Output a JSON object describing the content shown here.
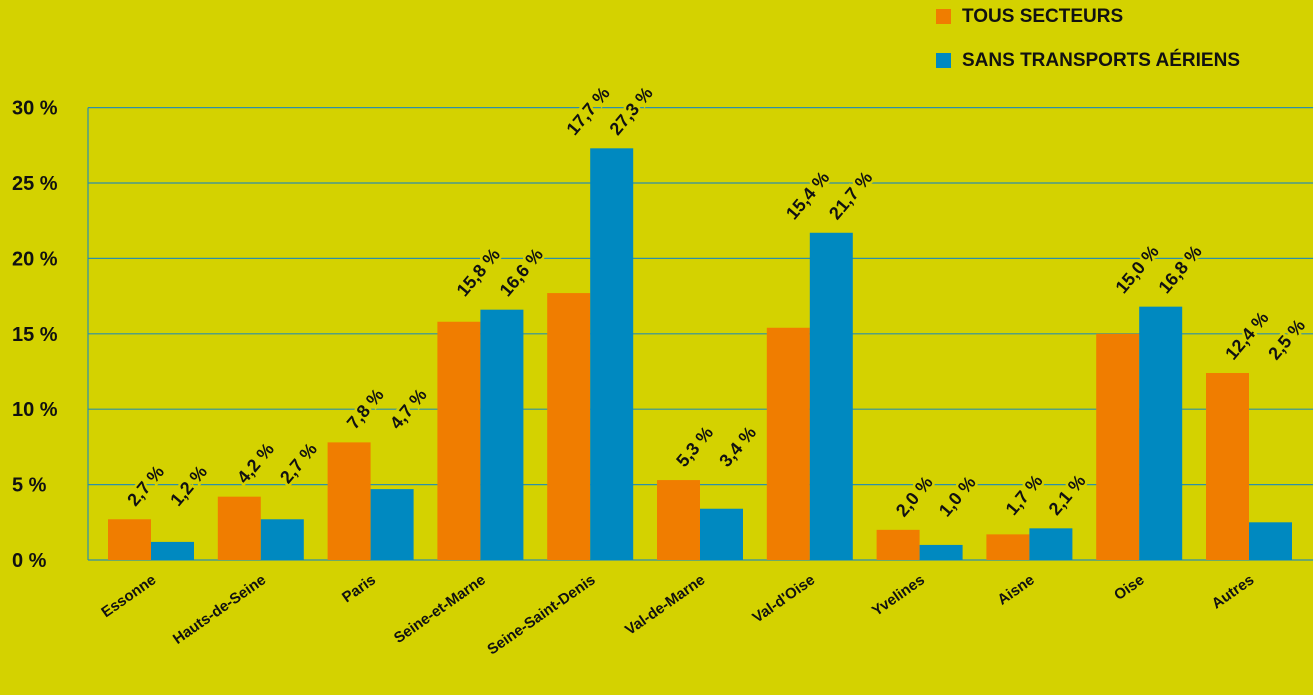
{
  "colors": {
    "background": "#d4d200",
    "gridline": "#2d8fa8",
    "label_bg": "#d4d200",
    "text": "#111111"
  },
  "chart_data": {
    "type": "bar",
    "title": "",
    "xlabel": "",
    "ylabel": "",
    "ylim": [
      0,
      30
    ],
    "yticks": [
      0,
      5,
      10,
      15,
      20,
      25,
      30
    ],
    "ytick_labels": [
      "0 %",
      "5 %",
      "10 %",
      "15 %",
      "20 %",
      "25 %",
      "30 %"
    ],
    "grid": true,
    "legend_position": "top-right",
    "categories": [
      "Essonne",
      "Hauts-de-Seine",
      "Paris",
      "Seine-et-Marne",
      "Seine-Saint-Denis",
      "Val-de-Marne",
      "Val-d'Oise",
      "Yvelines",
      "Aisne",
      "Oise",
      "Autres"
    ],
    "series": [
      {
        "name": "TOUS SECTEURS",
        "color": "#f07d00",
        "values": [
          2.7,
          4.2,
          7.8,
          15.8,
          17.7,
          5.3,
          15.4,
          2.0,
          1.7,
          15.0,
          12.4
        ],
        "labels": [
          "2,7 %",
          "4,2 %",
          "7,8 %",
          "15,8 %",
          "17,7 %",
          "5,3 %",
          "15,4 %",
          "2,0 %",
          "1,7 %",
          "15,0 %",
          "12,4 %"
        ]
      },
      {
        "name": "SANS TRANSPORTS AÉRIENS",
        "color": "#0089c0",
        "values": [
          1.2,
          2.7,
          4.7,
          16.6,
          27.3,
          3.4,
          21.7,
          1.0,
          2.1,
          16.8,
          2.5
        ],
        "labels": [
          "1,2 %",
          "2,7 %",
          "4,7 %",
          "16,6 %",
          "27,3 %",
          "3,4 %",
          "21,7 %",
          "1,0 %",
          "2,1 %",
          "16,8 %",
          "2,5 %"
        ]
      }
    ]
  }
}
